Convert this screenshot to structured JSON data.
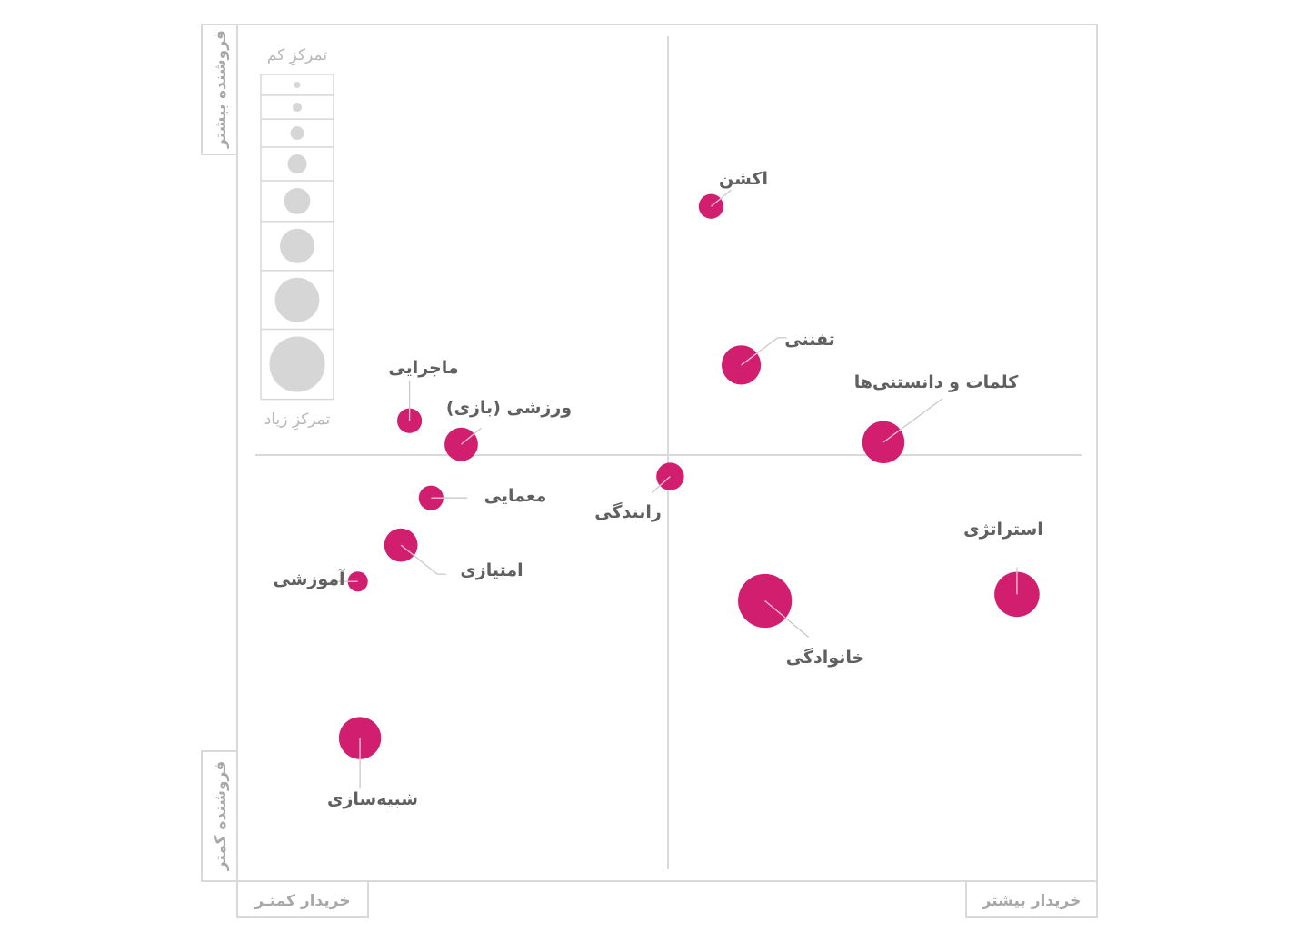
{
  "chart_data": {
    "type": "scatter",
    "x_axis": {
      "low_label": "خریدار کمتـر",
      "high_label": "خریدار بیشتر",
      "range": [
        -1,
        1
      ],
      "grid": false
    },
    "y_axis": {
      "low_label": "فروشنده کمتر",
      "high_label": "فروشنده بیشتر",
      "range": [
        -1,
        1
      ],
      "grid": false
    },
    "size_legend": {
      "top_label": "تمرکزِ کم",
      "bottom_label": "تمرکزِ زیاد",
      "sizes": [
        1,
        2,
        3,
        4,
        5,
        6,
        7,
        8
      ]
    },
    "points": [
      {
        "name": "اکشن",
        "x": 0.1,
        "y": 0.58,
        "size": 3.0
      },
      {
        "name": "تفننی",
        "x": 0.17,
        "y": 0.21,
        "size": 5.5
      },
      {
        "name": "کلمات و دانستنی‌ها",
        "x": 0.5,
        "y": 0.03,
        "size": 6.0
      },
      {
        "name": "ماجرایی",
        "x": -0.6,
        "y": 0.08,
        "size": 3.0
      },
      {
        "name": "ورزشی (بازی)",
        "x": -0.48,
        "y": 0.025,
        "size": 4.5
      },
      {
        "name": "رانندگی",
        "x": 0.005,
        "y": -0.05,
        "size": 3.5
      },
      {
        "name": "معمایی",
        "x": -0.55,
        "y": -0.1,
        "size": 3.0
      },
      {
        "name": "امتیازی",
        "x": -0.62,
        "y": -0.21,
        "size": 4.5
      },
      {
        "name": "آموزشی",
        "x": -0.72,
        "y": -0.295,
        "size": 2.2
      },
      {
        "name": "استراتژی",
        "x": 0.81,
        "y": -0.325,
        "size": 6.5
      },
      {
        "name": "خانوادگی",
        "x": 0.225,
        "y": -0.34,
        "size": 8.0
      },
      {
        "name": "شبیه‌سازی",
        "x": -0.715,
        "y": -0.66,
        "size": 6.0
      }
    ]
  }
}
